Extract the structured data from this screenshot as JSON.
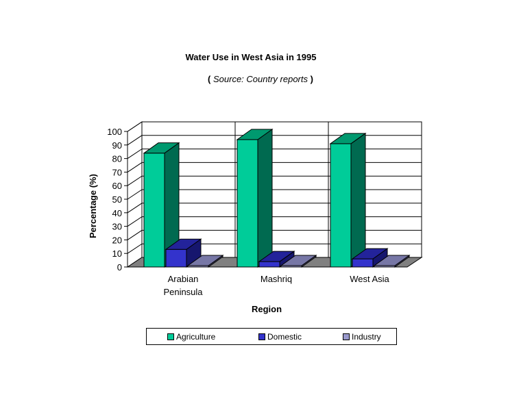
{
  "chart_data": {
    "type": "bar",
    "title": "Water Use in West Asia in 1995",
    "subtitle": "Source: Country reports",
    "xlabel": "Region",
    "ylabel": "Percentage (%)",
    "categories": [
      "Arabian Peninsula",
      "Mashriq",
      "West Asia"
    ],
    "yticks": [
      "0",
      "10",
      "20",
      "30",
      "40",
      "50",
      "60",
      "70",
      "80",
      "90",
      "100"
    ],
    "ylim": [
      0,
      100
    ],
    "grid": true,
    "legend_position": "bottom",
    "series": [
      {
        "name": "Agriculture",
        "values": [
          84,
          94,
          91
        ],
        "color": "#00cc99",
        "side": "#006a50",
        "top": "#00996f"
      },
      {
        "name": "Domestic",
        "values": [
          13,
          4,
          6
        ],
        "color": "#3333cc",
        "side": "#16166e",
        "top": "#23239a"
      },
      {
        "name": "Industry",
        "values": [
          1,
          1,
          1
        ],
        "color": "#9999cc",
        "side": "#55557a",
        "top": "#7777a6"
      }
    ]
  },
  "colors": {
    "floor": "#808080",
    "wall": "#ffffff",
    "grid": "#000000"
  }
}
